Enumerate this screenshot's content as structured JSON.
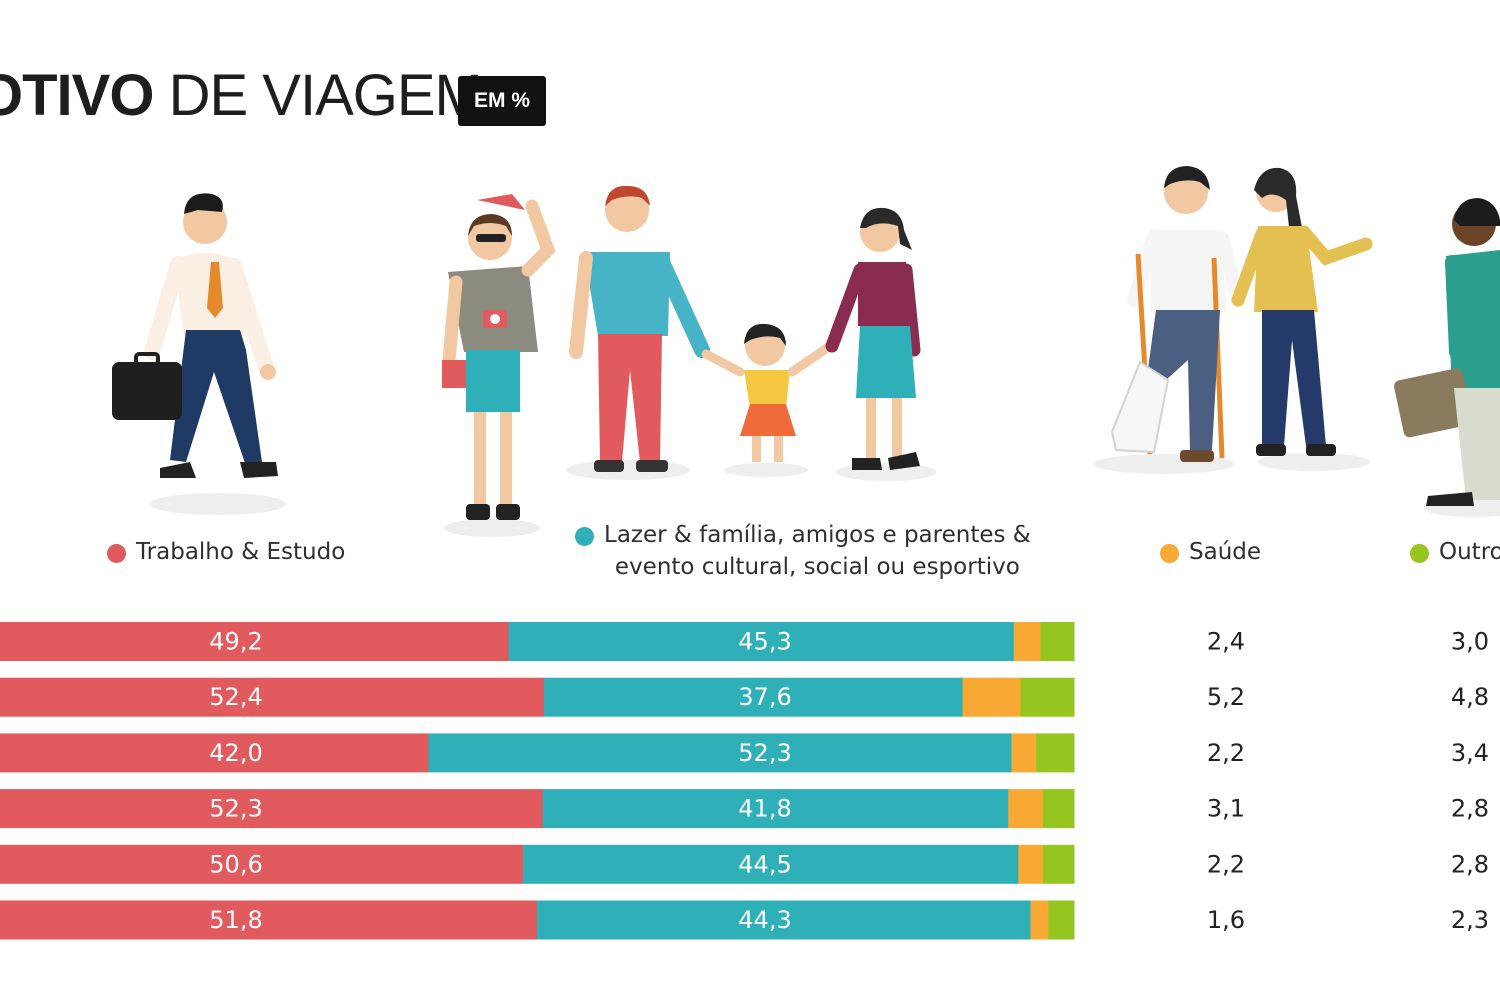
{
  "header": {
    "title_strong": "OTIVO",
    "title_rest": " DE VIAGEM",
    "unit_badge": "EM %"
  },
  "colors": {
    "trabalho": "#e05a5e",
    "lazer": "#2fb0b9",
    "saude": "#f7a933",
    "outros": "#95c61f"
  },
  "legend": [
    {
      "key": "trabalho",
      "label": "Trabalho & Estudo",
      "color": "#e05a5e"
    },
    {
      "key": "lazer",
      "label": "Lazer & família, amigos e parentes &\nevento cultural, social ou esportivo",
      "color": "#2fb0b9"
    },
    {
      "key": "saude",
      "label": "Saúde",
      "color": "#f7a933"
    },
    {
      "key": "outros",
      "label": "Outro",
      "color": "#95c61f"
    }
  ],
  "illustrations": [
    "businessman-walking-icon",
    "family-tourists-icon",
    "patient-with-crutches-icon",
    "traveler-with-bag-icon"
  ],
  "chart_data": {
    "type": "bar",
    "orientation": "horizontal",
    "stacked": true,
    "unit": "%",
    "categories": [
      "",
      "",
      "",
      "",
      "",
      ""
    ],
    "series": [
      {
        "name": "Trabalho & Estudo",
        "color": "#e05a5e",
        "values": [
          49.2,
          52.4,
          42.0,
          52.3,
          50.6,
          51.8
        ],
        "labels": [
          "49,2",
          "52,4",
          "42,0",
          "52,3",
          "50,6",
          "51,8"
        ]
      },
      {
        "name": "Lazer & família, amigos e parentes & evento cultural, social ou esportivo",
        "color": "#2fb0b9",
        "values": [
          45.3,
          37.6,
          52.3,
          41.8,
          44.5,
          44.3
        ],
        "labels": [
          "45,3",
          "37,6",
          "52,3",
          "41,8",
          "44,5",
          "44,3"
        ]
      },
      {
        "name": "Saúde",
        "color": "#f7a933",
        "values": [
          2.4,
          5.2,
          2.2,
          3.1,
          2.2,
          1.6
        ],
        "labels": [
          "2,4",
          "5,2",
          "2,2",
          "3,1",
          "2,2",
          "1,6"
        ]
      },
      {
        "name": "Outro",
        "color": "#95c61f",
        "values": [
          3.0,
          4.8,
          3.4,
          2.8,
          2.8,
          2.3
        ],
        "labels": [
          "3,0",
          "4,8",
          "3,4",
          "2,8",
          "2,8",
          "2,3"
        ]
      }
    ],
    "xlim": [
      0,
      100
    ]
  }
}
